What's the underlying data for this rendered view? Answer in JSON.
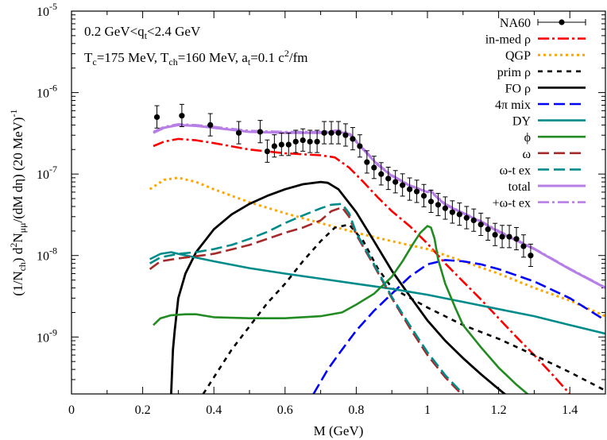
{
  "chart_data": {
    "type": "line",
    "xlabel": "M (GeV)",
    "ylabel_parts": [
      "(1/N",
      "ch",
      ") d",
      "2",
      "N",
      "μμ",
      "/(dM dη) (20 MeV)",
      "-1"
    ],
    "xlim": [
      0,
      1.5
    ],
    "ylim": [
      2e-10,
      1e-05
    ],
    "yscale": "log",
    "x_ticks": [
      0,
      0.2,
      0.4,
      0.6,
      0.8,
      1,
      1.2,
      1.4
    ],
    "x_tick_labels": [
      "0",
      "0.2",
      "0.4",
      "0.6",
      "0.8",
      "1",
      "1.2",
      "1.4"
    ],
    "y_tick_exponents": [
      -9,
      -8,
      -7,
      -6,
      -5
    ],
    "y_tick_base": "10",
    "annotations": {
      "line1": [
        "0.2 GeV<q",
        "t",
        "<2.4 GeV"
      ],
      "line2": [
        "T",
        "c",
        "=175 MeV, T",
        "ch",
        "=160 MeV, a",
        "t",
        "=0.1 c",
        "2",
        "/fm"
      ]
    },
    "legend_position": "top-right",
    "series": [
      {
        "name": "NA60",
        "style": "points",
        "color": "#000000",
        "x": [
          0.24,
          0.31,
          0.39,
          0.47,
          0.53,
          0.55,
          0.57,
          0.59,
          0.61,
          0.63,
          0.65,
          0.67,
          0.69,
          0.71,
          0.73,
          0.75,
          0.77,
          0.79,
          0.81,
          0.83,
          0.85,
          0.87,
          0.89,
          0.91,
          0.93,
          0.95,
          0.97,
          0.99,
          1.01,
          1.03,
          1.05,
          1.07,
          1.09,
          1.11,
          1.13,
          1.15,
          1.17,
          1.19,
          1.21,
          1.23,
          1.25,
          1.27,
          1.29
        ],
        "y": [
          5e-07,
          5.2e-07,
          4e-07,
          3.2e-07,
          3.3e-07,
          1.9e-07,
          2.2e-07,
          2.3e-07,
          2.3e-07,
          2.5e-07,
          2.6e-07,
          2.5e-07,
          2.5e-07,
          3.2e-07,
          3.2e-07,
          3.2e-07,
          3e-07,
          2.7e-07,
          2.2e-07,
          1.4e-07,
          1.2e-07,
          1e-07,
          8.8e-08,
          8e-08,
          7.3e-08,
          6.5e-08,
          6.1e-08,
          5.4e-08,
          4.6e-08,
          4.2e-08,
          3.8e-08,
          3.4e-08,
          3.2e-08,
          2.9e-08,
          2.7e-08,
          2.4e-08,
          2.1e-08,
          1.8e-08,
          1.7e-08,
          1.7e-08,
          1.6e-08,
          1.3e-08,
          1e-08
        ],
        "yerr_frac": 0.38
      },
      {
        "name": "in-med ρ",
        "color": "#ff0000",
        "dash": "14,4,3,4",
        "width": 2.6,
        "x": [
          0.23,
          0.26,
          0.3,
          0.35,
          0.4,
          0.5,
          0.6,
          0.7,
          0.74,
          0.78,
          0.82,
          0.86,
          0.9,
          0.95,
          1.0,
          1.05,
          1.1,
          1.15,
          1.2,
          1.25,
          1.3,
          1.35,
          1.4
        ],
        "y": [
          2.2e-07,
          2.5e-07,
          2.7e-07,
          2.6e-07,
          2.4e-07,
          2e-07,
          1.8e-07,
          1.7e-07,
          1.6e-07,
          1.2e-07,
          8e-08,
          5.2e-08,
          3.5e-08,
          2.3e-08,
          1.4e-08,
          8e-09,
          4.8e-09,
          2.9e-09,
          1.7e-09,
          1e-09,
          6e-10,
          3.5e-10,
          2e-10
        ]
      },
      {
        "name": "QGP",
        "color": "#ffa500",
        "dash": "3,4",
        "width": 3,
        "x": [
          0.22,
          0.26,
          0.3,
          0.35,
          0.4,
          0.5,
          0.6,
          0.7,
          0.8,
          0.9,
          1.0,
          1.1,
          1.2,
          1.3,
          1.4,
          1.5
        ],
        "y": [
          6.5e-08,
          8.5e-08,
          9e-08,
          8e-08,
          6.5e-08,
          4.5e-08,
          3.3e-08,
          2.5e-08,
          1.9e-08,
          1.5e-08,
          1.2e-08,
          8.5e-09,
          6e-09,
          4e-09,
          2.8e-09,
          1.8e-09
        ]
      },
      {
        "name": "prim ρ",
        "color": "#000000",
        "dash": "6,6",
        "width": 2.6,
        "x": [
          0.37,
          0.45,
          0.55,
          0.6,
          0.65,
          0.7,
          0.74,
          0.78,
          0.82,
          0.86,
          0.9,
          1.0,
          1.1,
          1.2,
          1.3,
          1.4,
          1.5
        ],
        "y": [
          2e-10,
          7e-10,
          2.6e-09,
          4.5e-09,
          8.5e-09,
          1.5e-08,
          2.2e-08,
          2.4e-08,
          1.5e-08,
          7e-09,
          4e-09,
          2.3e-09,
          1.4e-09,
          9.5e-10,
          6e-10,
          3.7e-10,
          2.2e-10
        ]
      },
      {
        "name": "FO ρ",
        "color": "#000000",
        "dash": "",
        "width": 2.8,
        "x": [
          0.28,
          0.285,
          0.29,
          0.3,
          0.32,
          0.35,
          0.4,
          0.45,
          0.5,
          0.55,
          0.6,
          0.65,
          0.7,
          0.72,
          0.75,
          0.8,
          0.85,
          0.9,
          0.95,
          1.0,
          1.05,
          1.1,
          1.15,
          1.2,
          1.23
        ],
        "y": [
          2e-10,
          7e-10,
          1.2e-09,
          3e-09,
          6e-09,
          1.1e-08,
          2.1e-08,
          3.2e-08,
          4.3e-08,
          5.4e-08,
          6.5e-08,
          7.5e-08,
          8e-08,
          7.8e-08,
          6.5e-08,
          3.4e-08,
          1.5e-08,
          6.5e-09,
          3.2e-09,
          1.6e-09,
          9e-10,
          5.5e-10,
          3.5e-10,
          2.3e-10,
          1.8e-10
        ]
      },
      {
        "name": "4π mix",
        "color": "#0000ff",
        "dash": "14,6",
        "width": 2.6,
        "x": [
          0.68,
          0.72,
          0.76,
          0.8,
          0.85,
          0.9,
          0.95,
          1.0,
          1.05,
          1.1,
          1.15,
          1.2,
          1.3,
          1.4,
          1.5
        ],
        "y": [
          2e-10,
          4e-10,
          7e-10,
          1.2e-09,
          2.1e-09,
          3.4e-09,
          5.5e-09,
          7.8e-09,
          8.8e-09,
          8.5e-09,
          7.8e-09,
          6.8e-09,
          4.8e-09,
          3e-09,
          1.6e-09
        ]
      },
      {
        "name": "DY",
        "color": "#008b8b",
        "dash": "",
        "width": 2.6,
        "x": [
          0.22,
          0.25,
          0.28,
          0.3,
          0.4,
          0.5,
          0.6,
          0.7,
          0.8,
          0.9,
          1.0,
          1.1,
          1.2,
          1.3,
          1.4,
          1.5
        ],
        "y": [
          9e-09,
          1.05e-08,
          1.1e-08,
          1.05e-08,
          8.5e-09,
          7e-09,
          6e-09,
          5.2e-09,
          4.5e-09,
          3.9e-09,
          3.3e-09,
          2.7e-09,
          2.2e-09,
          1.8e-09,
          1.4e-09,
          1.1e-09
        ]
      },
      {
        "name": "ϕ",
        "color": "#228b22",
        "dash": "",
        "width": 2.6,
        "x": [
          0.23,
          0.25,
          0.28,
          0.32,
          0.35,
          0.4,
          0.5,
          0.6,
          0.7,
          0.76,
          0.8,
          0.85,
          0.9,
          0.93,
          0.96,
          0.98,
          1.0,
          1.01,
          1.02,
          1.03,
          1.05,
          1.08,
          1.1,
          1.15,
          1.2,
          1.25,
          1.3
        ],
        "y": [
          1.4e-09,
          1.7e-09,
          1.85e-09,
          1.9e-09,
          1.9e-09,
          1.75e-09,
          1.7e-09,
          1.7e-09,
          1.8e-09,
          2e-09,
          2.5e-09,
          3.4e-09,
          5.5e-09,
          8.5e-09,
          1.4e-08,
          1.9e-08,
          2.3e-08,
          2.2e-08,
          1.6e-08,
          9e-09,
          4.5e-09,
          2.2e-09,
          1.4e-09,
          7.5e-10,
          4.2e-10,
          2.6e-10,
          1.7e-10
        ]
      },
      {
        "name": "ω",
        "color": "#a52a2a",
        "dash": "14,6",
        "width": 2.6,
        "x": [
          0.22,
          0.25,
          0.3,
          0.35,
          0.4,
          0.5,
          0.6,
          0.65,
          0.7,
          0.73,
          0.76,
          0.78,
          0.8,
          0.85,
          0.9,
          0.95,
          1.0,
          1.05,
          1.1,
          1.13
        ],
        "y": [
          6.8e-09,
          8.5e-09,
          9.2e-09,
          9.8e-09,
          1.05e-08,
          1.35e-08,
          1.9e-08,
          2.2e-08,
          2.7e-08,
          3.5e-08,
          3.9e-08,
          3e-08,
          1.8e-08,
          7.5e-09,
          3e-09,
          1.3e-09,
          6e-10,
          3.2e-10,
          1.9e-10,
          1.5e-10
        ]
      },
      {
        "name": "ω-t ex",
        "color": "#008b8b",
        "dash": "14,6",
        "width": 2.6,
        "x": [
          0.22,
          0.25,
          0.3,
          0.35,
          0.4,
          0.45,
          0.5,
          0.55,
          0.6,
          0.65,
          0.7,
          0.73,
          0.76,
          0.78,
          0.8,
          0.85,
          0.9,
          0.95,
          1.0,
          1.05,
          1.1,
          1.13
        ],
        "y": [
          8e-09,
          9.5e-09,
          1.05e-08,
          1.1e-08,
          1.2e-08,
          1.35e-08,
          1.6e-08,
          1.95e-08,
          2.5e-08,
          3.1e-08,
          3.8e-08,
          4.2e-08,
          4.3e-08,
          3.3e-08,
          1.9e-08,
          7.8e-09,
          3.1e-09,
          1.4e-09,
          6.5e-10,
          3.4e-10,
          2e-10,
          1.6e-10
        ]
      },
      {
        "name": "total",
        "color": "#b77fe6",
        "dash": "",
        "width": 3,
        "x": [
          0.23,
          0.26,
          0.3,
          0.35,
          0.4,
          0.5,
          0.6,
          0.7,
          0.75,
          0.78,
          0.82,
          0.86,
          0.9,
          0.95,
          1.0,
          1.01,
          1.02,
          1.05,
          1.1,
          1.15,
          1.2,
          1.3,
          1.4,
          1.5
        ],
        "y": [
          3.2e-07,
          3.7e-07,
          4e-07,
          3.9e-07,
          3.7e-07,
          3.3e-07,
          3.2e-07,
          3.2e-07,
          3.3e-07,
          3.1e-07,
          2e-07,
          1.3e-07,
          9.5e-08,
          7.2e-08,
          6e-08,
          6.2e-08,
          5.5e-08,
          4.2e-08,
          3.3e-08,
          2.6e-08,
          1.95e-08,
          1.2e-08,
          6.8e-09,
          4e-09
        ]
      },
      {
        "name": "+ω-t ex",
        "color": "#b77fe6",
        "dash": "14,4,3,4",
        "width": 2.6,
        "x": [
          0.23,
          0.26,
          0.3,
          0.35,
          0.4,
          0.5,
          0.6,
          0.7,
          0.75,
          0.78,
          0.82,
          0.86,
          0.9,
          0.95,
          1.0,
          1.01,
          1.02,
          1.05,
          1.1,
          1.15,
          1.2,
          1.3,
          1.4,
          1.5
        ],
        "y": [
          3.3e-07,
          3.8e-07,
          4.1e-07,
          4e-07,
          3.8e-07,
          3.4e-07,
          3.3e-07,
          3.3e-07,
          3.45e-07,
          3.2e-07,
          2.05e-07,
          1.33e-07,
          9.7e-08,
          7.3e-08,
          6.1e-08,
          6.3e-08,
          5.6e-08,
          4.3e-08,
          3.35e-08,
          2.65e-08,
          2e-08,
          1.22e-08,
          6.9e-09,
          4.05e-09
        ]
      }
    ]
  }
}
